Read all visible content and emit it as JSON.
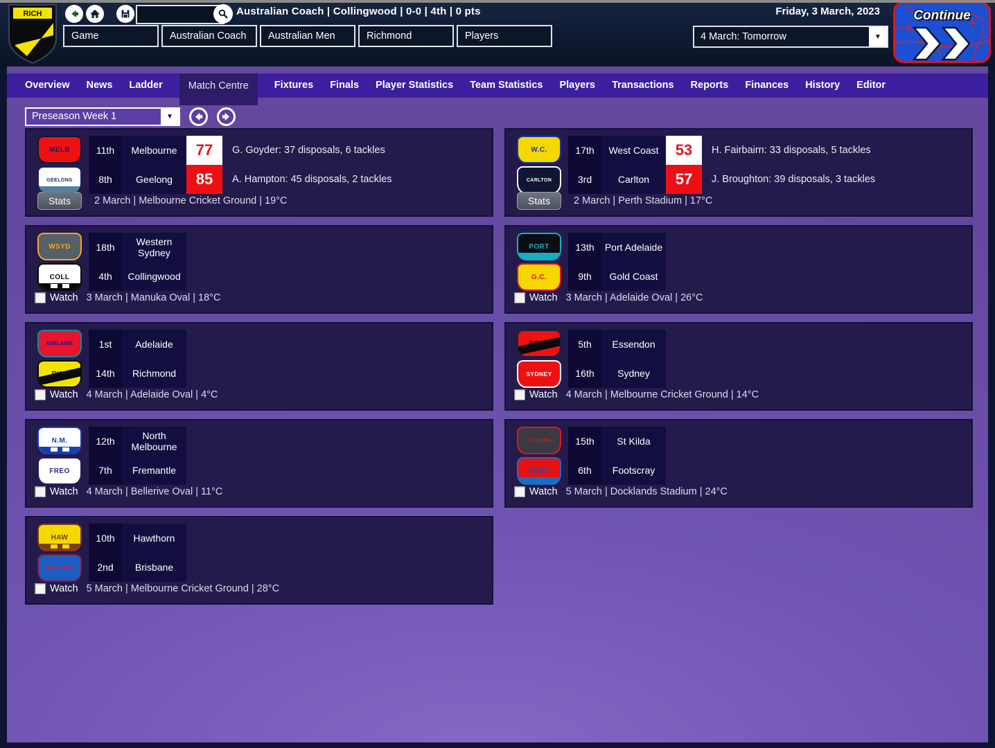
{
  "titlebar": {
    "badge_text": "RICH",
    "title": "Australian Coach | Collingwood | 0-0 | 4th | 0 pts",
    "date": "Friday, 3 March, 2023",
    "search_value": "",
    "menu": [
      {
        "label": "Game"
      },
      {
        "label": "Australian Coach"
      },
      {
        "label": "Australian Men"
      },
      {
        "label": "Richmond"
      },
      {
        "label": "Players"
      }
    ],
    "next_event": "4 March: Tomorrow",
    "continue_label": "Continue"
  },
  "icons": {
    "caret_down": "▼"
  },
  "tabs": {
    "items": [
      {
        "label": "Overview"
      },
      {
        "label": "News"
      },
      {
        "label": "Ladder"
      },
      {
        "label": "Match Centre",
        "active": true
      },
      {
        "label": "Fixtures"
      },
      {
        "label": "Finals"
      },
      {
        "label": "Player Statistics"
      },
      {
        "label": "Team Statistics"
      },
      {
        "label": "Players"
      },
      {
        "label": "Transactions"
      },
      {
        "label": "Reports"
      },
      {
        "label": "Finances"
      },
      {
        "label": "History"
      },
      {
        "label": "Editor"
      }
    ]
  },
  "filter": {
    "selected": "Preseason Week 1"
  },
  "labels": {
    "stats": "Stats",
    "watch": "Watch"
  },
  "theme": {
    "score_top_bg": "#ffffff",
    "score_top_color": "#e81420",
    "score_bottom_bg": "#ee0f14",
    "score_bottom_color": "#ffffff",
    "content_purple": "#6a4fae",
    "tabstrip_purple": "#3c1f9e",
    "card_bg": "#241b4c"
  },
  "matches": {
    "left": [
      {
        "played": true,
        "meta": "2 March | Melbourne Cricket Ground | 19°C",
        "teams": [
          {
            "pos": "11th",
            "name": "Melbourne",
            "score": "77",
            "stat": "G. Goyder: 37 disposals, 6 tackles",
            "logo": {
              "text": "MELB",
              "bg": "#ee1111",
              "color": "#101c6e",
              "border": "#131336"
            }
          },
          {
            "pos": "8th",
            "name": "Geelong",
            "score": "85",
            "stat": "A. Hampton: 45 disposals, 2 tackles",
            "logo": {
              "text": "GEELONG",
              "bg": "#ffffff",
              "color": "#12265e",
              "border": "#12265e",
              "band": "#54809e"
            }
          }
        ]
      },
      {
        "played": false,
        "meta": "3 March | Manuka Oval | 18°C",
        "teams": [
          {
            "pos": "18th",
            "name": "Western Sydney",
            "logo": {
              "text": "WSYD",
              "bg": "#566066",
              "color": "#f5a623",
              "border": "#f5a623"
            }
          },
          {
            "pos": "4th",
            "name": "Collingwood",
            "logo": {
              "text": "COLL",
              "bg": "#ffffff",
              "color": "#0a0a0a",
              "border": "#0a0a0a",
              "band": "#0a0a0a",
              "squares": "#ffffff"
            }
          }
        ]
      },
      {
        "played": false,
        "meta": "4 March | Adelaide Oval | 4°C",
        "teams": [
          {
            "pos": "1st",
            "name": "Adelaide",
            "logo": {
              "text": "ADELAIDE",
              "bg": "#e8132d",
              "color": "#141480",
              "border": "#0e8a9e"
            }
          },
          {
            "pos": "14th",
            "name": "Richmond",
            "logo": {
              "text": "RKH",
              "bg": "#f2e400",
              "color": "#0a0a0a",
              "border": "#0a0a0a",
              "sash": "#0a0a0a"
            }
          }
        ]
      },
      {
        "played": false,
        "meta": "4 March | Bellerive Oval | 11°C",
        "teams": [
          {
            "pos": "12th",
            "name": "North Melbourne",
            "logo": {
              "text": "N.M.",
              "bg": "#ffffff",
              "color": "#1440b4",
              "border": "#1440b4",
              "band": "#1440b4",
              "squares": "#ffffff"
            }
          },
          {
            "pos": "7th",
            "name": "Fremantle",
            "logo": {
              "text": "FREO",
              "bg": "#ffffff",
              "color": "#3d2580",
              "border": "#272052"
            }
          }
        ]
      },
      {
        "played": false,
        "meta": "5 March | Melbourne Cricket Ground | 28°C",
        "teams": [
          {
            "pos": "10th",
            "name": "Hawthorn",
            "logo": {
              "text": "HAW",
              "bg": "#f5d800",
              "color": "#7c3c1c",
              "border": "#7c3c1c",
              "band": "#7c3c1c",
              "squares": "#f5d800"
            }
          },
          {
            "pos": "2nd",
            "name": "Brisbane",
            "logo": {
              "text": "BRISBANE",
              "bg": "#1a5ec0",
              "color": "#c01a56",
              "border": "#8c1648"
            }
          }
        ]
      }
    ],
    "right": [
      {
        "played": true,
        "meta": "2 March | Perth Stadium | 17°C",
        "teams": [
          {
            "pos": "17th",
            "name": "West Coast",
            "score": "53",
            "stat": "H. Fairbairn: 33 disposals, 5 tackles",
            "logo": {
              "text": "W.C.",
              "bg": "#f5d800",
              "color": "#1838b0",
              "border": "#1838b0"
            }
          },
          {
            "pos": "3rd",
            "name": "Carlton",
            "score": "57",
            "stat": "J. Broughton: 39 disposals, 3 tackles",
            "logo": {
              "text": "CARLTON",
              "bg": "#0e1632",
              "color": "#ffffff",
              "border": "#ffffff"
            }
          }
        ]
      },
      {
        "played": false,
        "meta": "3 March | Adelaide Oval | 26°C",
        "teams": [
          {
            "pos": "13th",
            "name": "Port Adelaide",
            "logo": {
              "text": "PORT",
              "bg": "#0c0c14",
              "color": "#12b0c4",
              "border": "#12b0c4",
              "band": "#12b0c4"
            }
          },
          {
            "pos": "9th",
            "name": "Gold Coast",
            "logo": {
              "text": "G.C.",
              "bg": "#f5d800",
              "color": "#e8131d",
              "border": "#e8131d"
            }
          }
        ]
      },
      {
        "played": false,
        "meta": "4 March | Melbourne Cricket Ground | 14°C",
        "teams": [
          {
            "pos": "5th",
            "name": "Essendon",
            "logo": {
              "text": "ESSN",
              "bg": "#ee1111",
              "color": "#0a0a0a",
              "border": "#1c1c40",
              "sash": "#0a0a0a"
            }
          },
          {
            "pos": "16th",
            "name": "Sydney",
            "logo": {
              "text": "SYDNEY",
              "bg": "#ee1111",
              "color": "#ffffff",
              "border": "#ffffff"
            }
          }
        ]
      },
      {
        "played": false,
        "meta": "5 March | Docklands Stadium | 24°C",
        "teams": [
          {
            "pos": "15th",
            "name": "St Kilda",
            "logo": {
              "text": "ST KILDA",
              "bg": "#3a3a42",
              "color": "#e8131d",
              "border": "#e8131d"
            }
          },
          {
            "pos": "6th",
            "name": "Footscray",
            "logo": {
              "text": "FOOT",
              "bg": "#e81111",
              "color": "#1a50b4",
              "border": "#1a6ec0",
              "band": "#1a6ec0"
            }
          }
        ]
      }
    ]
  }
}
